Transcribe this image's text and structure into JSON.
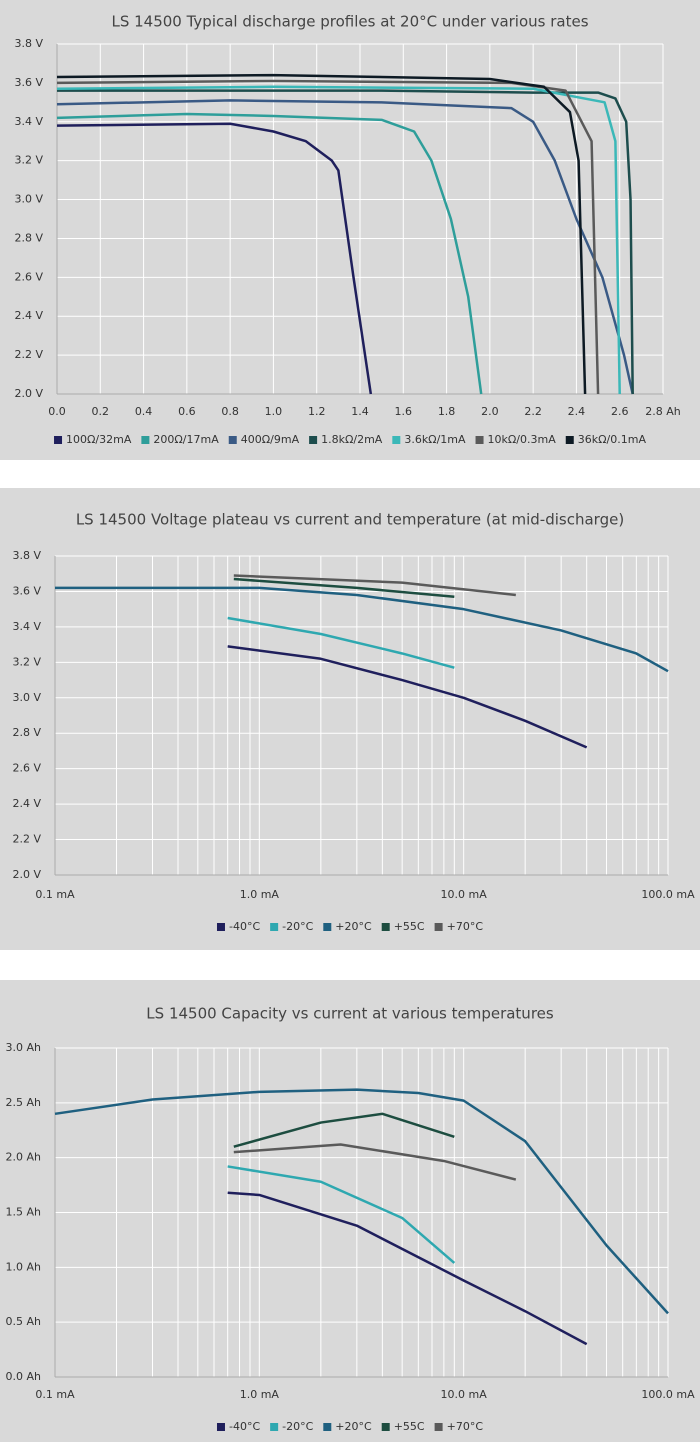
{
  "chart_data": [
    {
      "type": "line",
      "title": "LS 14500 Typical discharge profiles at 20°C under various rates",
      "xlim": [
        0,
        2.8
      ],
      "ylim": [
        2.0,
        3.8
      ],
      "log_x": false,
      "grid": true,
      "xticks": [
        {
          "value": 0,
          "label": "0.0"
        },
        0.2,
        0.4,
        0.6,
        0.8,
        {
          "value": 1,
          "label": "1.0"
        },
        1.2,
        1.4,
        1.6,
        1.8,
        {
          "value": 2,
          "label": "2.0"
        },
        2.2,
        2.4,
        2.6,
        {
          "value": 2.8,
          "label": "2.8 Ah"
        }
      ],
      "yticks": [
        {
          "value": 2.0,
          "label": "2.0 V"
        },
        {
          "value": 2.2,
          "label": "2.2 V"
        },
        {
          "value": 2.4,
          "label": "2.4 V"
        },
        {
          "value": 2.6,
          "label": "2.6 V"
        },
        {
          "value": 2.8,
          "label": "2.8 V"
        },
        {
          "value": 3.0,
          "label": "3.0 V"
        },
        {
          "value": 3.2,
          "label": "3.2 V"
        },
        {
          "value": 3.4,
          "label": "3.4 V"
        },
        {
          "value": 3.6,
          "label": "3.6 V"
        },
        {
          "value": 3.8,
          "label": "3.8 V"
        }
      ],
      "series": [
        {
          "name": "100Ω/32mA",
          "color": "#1f1f5c",
          "x": [
            0,
            0.8,
            1.0,
            1.15,
            1.27,
            1.3,
            1.37,
            1.45
          ],
          "values": [
            3.38,
            3.39,
            3.35,
            3.3,
            3.2,
            3.15,
            2.6,
            2.0
          ]
        },
        {
          "name": "200Ω/17mA",
          "color": "#2e9e9a",
          "x": [
            0,
            0.6,
            1.0,
            1.5,
            1.65,
            1.73,
            1.82,
            1.9,
            1.96
          ],
          "values": [
            3.42,
            3.44,
            3.43,
            3.41,
            3.35,
            3.2,
            2.9,
            2.5,
            2.0
          ]
        },
        {
          "name": "400Ω/9mA",
          "color": "#3a5a85",
          "x": [
            0,
            0.8,
            1.5,
            2.1,
            2.2,
            2.3,
            2.4,
            2.52,
            2.62,
            2.66
          ],
          "values": [
            3.49,
            3.51,
            3.5,
            3.47,
            3.4,
            3.2,
            2.9,
            2.6,
            2.2,
            2.0
          ]
        },
        {
          "name": "1.8kΩ/2mA",
          "color": "#1d4d4d",
          "x": [
            0,
            1.5,
            2.2,
            2.5,
            2.58,
            2.63,
            2.65,
            2.66
          ],
          "values": [
            3.56,
            3.56,
            3.55,
            3.55,
            3.52,
            3.4,
            3.0,
            2.0
          ]
        },
        {
          "name": "3.6kΩ/1mA",
          "color": "#3bb8b8",
          "x": [
            0,
            1.0,
            2.2,
            2.53,
            2.58,
            2.6
          ],
          "values": [
            3.57,
            3.58,
            3.57,
            3.5,
            3.3,
            2.0
          ]
        },
        {
          "name": "10kΩ/0.3mA",
          "color": "#5a5a5a",
          "x": [
            0,
            1.0,
            2.1,
            2.35,
            2.47,
            2.5
          ],
          "values": [
            3.6,
            3.61,
            3.6,
            3.56,
            3.3,
            2.0
          ]
        },
        {
          "name": "36kΩ/0.1mA",
          "color": "#0d1a24",
          "x": [
            0,
            1.0,
            2.0,
            2.25,
            2.37,
            2.41,
            2.44
          ],
          "values": [
            3.63,
            3.64,
            3.62,
            3.58,
            3.45,
            3.2,
            2.0
          ]
        }
      ]
    },
    {
      "type": "line",
      "title": "LS 14500 Voltage plateau vs current and temperature (at mid-discharge)",
      "xlim": [
        0.1,
        100
      ],
      "ylim": [
        2.0,
        3.8
      ],
      "log_x": true,
      "grid": true,
      "xticks": [
        {
          "value": 0.1,
          "label": "0.1 mA"
        },
        {
          "value": 1,
          "label": "1.0 mA"
        },
        {
          "value": 10,
          "label": "10.0 mA"
        },
        {
          "value": 100,
          "label": "100.0 mA"
        }
      ],
      "xminorticks": [
        0.2,
        0.3,
        0.4,
        0.5,
        0.6,
        0.7,
        0.8,
        0.9,
        2,
        3,
        4,
        5,
        6,
        7,
        8,
        9,
        20,
        30,
        40,
        50,
        60,
        70,
        80,
        90
      ],
      "yticks": [
        {
          "value": 2.0,
          "label": "2.0 V"
        },
        {
          "value": 2.2,
          "label": "2.2 V"
        },
        {
          "value": 2.4,
          "label": "2.4 V"
        },
        {
          "value": 2.6,
          "label": "2.6 V"
        },
        {
          "value": 2.8,
          "label": "2.8 V"
        },
        {
          "value": 3.0,
          "label": "3.0 V"
        },
        {
          "value": 3.2,
          "label": "3.2 V"
        },
        {
          "value": 3.4,
          "label": "3.4 V"
        },
        {
          "value": 3.6,
          "label": "3.6 V"
        },
        {
          "value": 3.8,
          "label": "3.8 V"
        }
      ],
      "series": [
        {
          "name": "-40°C",
          "color": "#1f1f5c",
          "x": [
            0.7,
            2,
            5,
            10,
            20,
            40
          ],
          "values": [
            3.29,
            3.22,
            3.1,
            3.0,
            2.87,
            2.72
          ]
        },
        {
          "name": "-20°C",
          "color": "#2ea8b0",
          "x": [
            0.7,
            2,
            5,
            9
          ],
          "values": [
            3.45,
            3.36,
            3.25,
            3.17
          ]
        },
        {
          "name": "+20°C",
          "color": "#1f6080",
          "x": [
            0.1,
            1,
            3,
            10,
            30,
            70,
            100
          ],
          "values": [
            3.62,
            3.62,
            3.58,
            3.5,
            3.38,
            3.25,
            3.15
          ]
        },
        {
          "name": "+55C",
          "color": "#1d4d40",
          "x": [
            0.75,
            3,
            9
          ],
          "values": [
            3.67,
            3.62,
            3.57
          ]
        },
        {
          "name": "+70°C",
          "color": "#5a5a5a",
          "x": [
            0.75,
            5,
            18
          ],
          "values": [
            3.69,
            3.65,
            3.58
          ]
        }
      ]
    },
    {
      "type": "line",
      "title": "LS 14500 Capacity vs current at various temperatures",
      "xlim": [
        0.1,
        100
      ],
      "ylim": [
        0.0,
        3.0
      ],
      "log_x": true,
      "grid": true,
      "xticks": [
        {
          "value": 0.1,
          "label": "0.1 mA"
        },
        {
          "value": 1,
          "label": "1.0 mA"
        },
        {
          "value": 10,
          "label": "10.0 mA"
        },
        {
          "value": 100,
          "label": "100.0 mA"
        }
      ],
      "xminorticks": [
        0.2,
        0.3,
        0.4,
        0.5,
        0.6,
        0.7,
        0.8,
        0.9,
        2,
        3,
        4,
        5,
        6,
        7,
        8,
        9,
        20,
        30,
        40,
        50,
        60,
        70,
        80,
        90
      ],
      "yticks": [
        {
          "value": 0.0,
          "label": "0.0 Ah"
        },
        {
          "value": 0.5,
          "label": "0.5 Ah"
        },
        {
          "value": 1.0,
          "label": "1.0 Ah"
        },
        {
          "value": 1.5,
          "label": "1.5 Ah"
        },
        {
          "value": 2.0,
          "label": "2.0 Ah"
        },
        {
          "value": 2.5,
          "label": "2.5 Ah"
        },
        {
          "value": 3.0,
          "label": "3.0 Ah"
        }
      ],
      "series": [
        {
          "name": "-40°C",
          "color": "#1f1f5c",
          "x": [
            0.7,
            1,
            3,
            10,
            20,
            40
          ],
          "values": [
            1.68,
            1.66,
            1.38,
            0.88,
            0.6,
            0.3
          ]
        },
        {
          "name": "-20°C",
          "color": "#2ea8b0",
          "x": [
            0.7,
            2,
            5,
            9
          ],
          "values": [
            1.92,
            1.78,
            1.45,
            1.04
          ]
        },
        {
          "name": "+20°C",
          "color": "#1f6080",
          "x": [
            0.1,
            0.3,
            1,
            3,
            6,
            10,
            20,
            50,
            100
          ],
          "values": [
            2.4,
            2.53,
            2.6,
            2.62,
            2.59,
            2.52,
            2.15,
            1.2,
            0.58
          ]
        },
        {
          "name": "+55C",
          "color": "#1d4d40",
          "x": [
            0.75,
            2,
            4,
            9
          ],
          "values": [
            2.1,
            2.32,
            2.4,
            2.19
          ]
        },
        {
          "name": "+70°C",
          "color": "#5a5a5a",
          "x": [
            0.75,
            2.5,
            8,
            18
          ],
          "values": [
            2.05,
            2.12,
            1.97,
            1.8
          ]
        }
      ]
    }
  ]
}
